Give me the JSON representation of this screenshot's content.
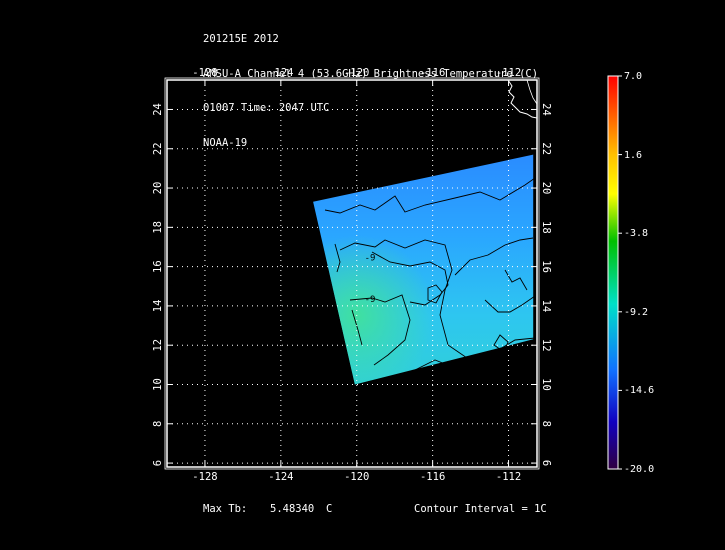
{
  "header": {
    "line1": "201215E 2012",
    "line2": "AMSU-A Channel 4 (53.6GHz) Brightness Temperature (C)",
    "line3": "01007 Time: 2047 UTC",
    "line4": "NOAA-19"
  },
  "map": {
    "lon_range": [
      -130,
      -110.5
    ],
    "lat_range": [
      5.8,
      25.5
    ],
    "lon_ticks": [
      -128,
      -124,
      -120,
      -116,
      -112
    ],
    "lat_ticks": [
      6,
      8,
      10,
      12,
      14,
      16,
      18,
      20,
      22,
      24
    ],
    "lon_tick_labels": [
      "-128",
      "-124",
      "-120",
      "-116",
      "-112"
    ],
    "lat_tick_labels": [
      "6",
      "8",
      "10",
      "12",
      "14",
      "16",
      "18",
      "20",
      "22",
      "24"
    ],
    "grid": "dotted",
    "swath_corners_lonlat": [
      [
        -122.3,
        19.3
      ],
      [
        -110.7,
        21.7
      ],
      [
        -110.7,
        12.3
      ],
      [
        -120.1,
        10.0
      ]
    ],
    "contour_labels": [
      {
        "text": "-9",
        "lon": -119.3,
        "lat": 14.2
      },
      {
        "text": "-9",
        "lon": -119.3,
        "lat": 16.3
      }
    ]
  },
  "colorbar": {
    "labels": [
      "7.0",
      "1.6",
      "-3.8",
      "-9.2",
      "-14.6",
      "-20.0"
    ],
    "min": -20.0,
    "max": 7.0
  },
  "footer": {
    "max_label": "Max Tb:",
    "max_value": "5.48340",
    "max_unit": "C",
    "contour": "Contour Interval = 1C"
  }
}
